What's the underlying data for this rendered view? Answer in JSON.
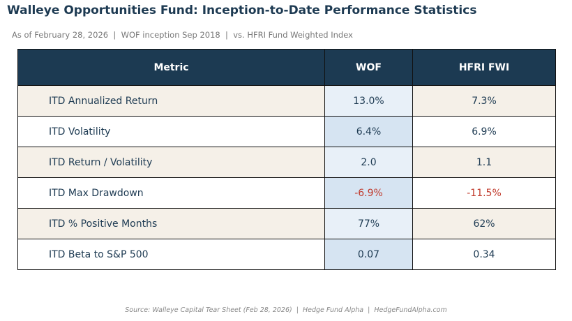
{
  "header": {
    "title": "Walleye Opportunities Fund: Inception-to-Date Performance Statistics",
    "subtitle": "As of February 28, 2026  |  WOF inception Sep 2018  |  vs. HFRI Fund Weighted Index"
  },
  "table": {
    "columns": [
      "Metric",
      "WOF",
      "HFRI FWI"
    ],
    "rows": [
      [
        "ITD Annualized Return",
        "13.0%",
        "7.3%"
      ],
      [
        "ITD Volatility",
        "6.4%",
        "6.9%"
      ],
      [
        "ITD Return / Volatility",
        "2.0",
        "1.1"
      ],
      [
        "ITD Max Drawdown",
        "-6.9%",
        "-11.5%"
      ],
      [
        "ITD % Positive Months",
        "77%",
        "62%"
      ],
      [
        "ITD Beta to S&P 500",
        "0.07",
        "0.34"
      ]
    ]
  },
  "footer": "Source: Walleye Capital Tear Sheet (Feb 28, 2026)  |  Hedge Fund Alpha  |  HedgeFundAlpha.com"
}
